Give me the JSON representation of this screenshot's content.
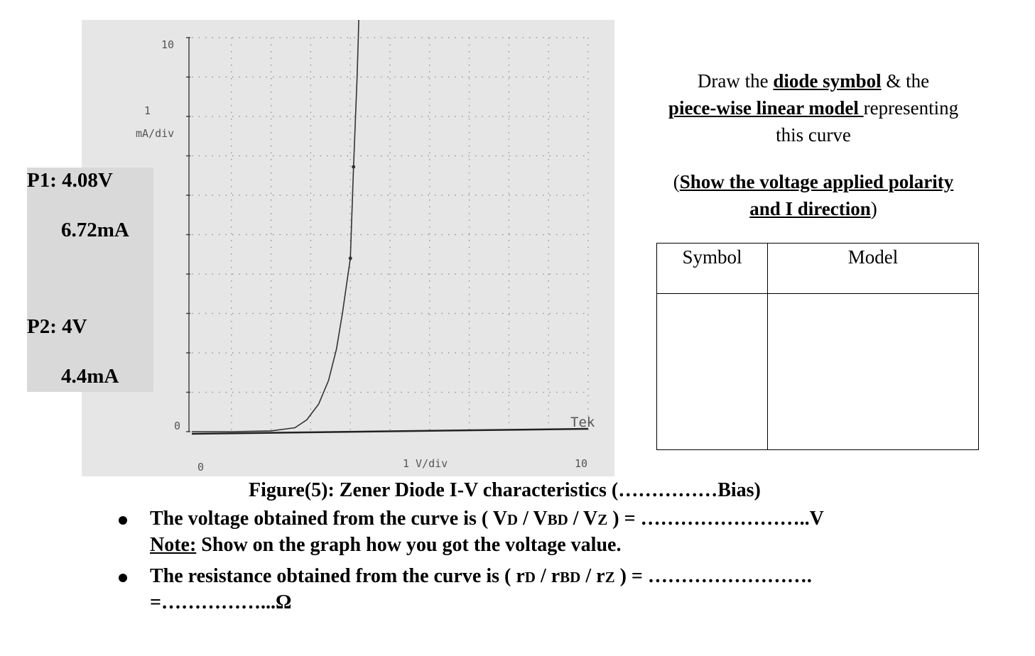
{
  "chart_data": {
    "type": "line",
    "title": "",
    "xlabel": "1 V/div",
    "ylabel": "1 mA/div",
    "xlim": [
      0,
      10
    ],
    "ylim": [
      0,
      10
    ],
    "x_ticks": [
      "0",
      "10"
    ],
    "y_ticks": [
      "0",
      "10"
    ],
    "y_scale_label": [
      "1",
      "mA/div"
    ],
    "x_scale_label": "1 V/div",
    "brand": "Tek",
    "grid": true,
    "series": [
      {
        "x": [
          0,
          1.0,
          2.0,
          2.6,
          2.9,
          3.2,
          3.45,
          3.65,
          3.8,
          3.9,
          4.0,
          4.08,
          4.13,
          4.17,
          4.2,
          4.22
        ],
        "y": [
          0,
          0.0,
          0.02,
          0.1,
          0.3,
          0.7,
          1.3,
          2.1,
          3.0,
          3.7,
          4.4,
          6.72,
          8.0,
          9.0,
          10.0,
          10.8
        ]
      }
    ],
    "markers": [
      {
        "x": 4.08,
        "y": 6.72
      },
      {
        "x": 4.0,
        "y": 4.4
      }
    ]
  },
  "points": {
    "p1_voltage": "P1: 4.08V",
    "p1_current": "6.72mA",
    "p2_voltage": "P2: 4V",
    "p2_current": "4.4mA"
  },
  "instructions": {
    "line1_pre": "Draw the ",
    "line1_bold": "diode symbol",
    "line1_post": " & the",
    "line2_bold": "piece-wise linear model ",
    "line2_post": "representing",
    "line3": "this curve",
    "paren_open": "(",
    "paren_bold1": "Show the voltage applied polarity",
    "paren_bold2": "and I direction",
    "paren_close": ")"
  },
  "table": {
    "col1_header": "Symbol",
    "col2_header": "Model"
  },
  "caption": "Figure(5): Zener Diode I-V characteristics (……………Bias)",
  "questions": {
    "q1_pre": "The voltage obtained from the curve is ( V",
    "q1_sub1": "D",
    "q1_mid1": " /  V",
    "q1_sub2": "BD",
    "q1_mid2": " / V",
    "q1_sub3": "Z",
    "q1_post": " ) = ……………………..V",
    "note_label": "Note:",
    "note_text": " Show on the graph how you got the voltage value.",
    "q2_pre": "The resistance obtained from the curve is ( r",
    "q2_sub1": "D",
    "q2_mid1": " / r",
    "q2_sub2": "BD",
    "q2_mid2": "  / r",
    "q2_sub3": "Z",
    "q2_post": "  ) = …………………….",
    "q2_line2": "=……………...Ω"
  },
  "colors": {
    "panel": "#e6e6e6",
    "points_box": "#d9d9d9",
    "trace": "#333333",
    "grid_dots": "#888888"
  }
}
